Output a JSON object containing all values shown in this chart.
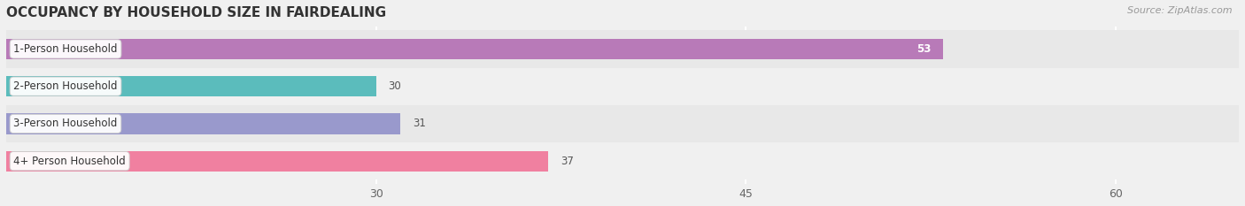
{
  "title": "OCCUPANCY BY HOUSEHOLD SIZE IN FAIRDEALING",
  "source": "Source: ZipAtlas.com",
  "categories": [
    "1-Person Household",
    "2-Person Household",
    "3-Person Household",
    "4+ Person Household"
  ],
  "values": [
    53,
    30,
    31,
    37
  ],
  "bar_colors": [
    "#b87ab8",
    "#5bbcbc",
    "#9999cc",
    "#f080a0"
  ],
  "xlim": [
    15,
    65
  ],
  "xticks": [
    30,
    45,
    60
  ],
  "background_color": "#f0f0f0",
  "row_colors": [
    "#e8e8e8",
    "#f0f0f0"
  ],
  "bar_height": 0.55,
  "title_fontsize": 11,
  "label_fontsize": 8.5,
  "value_fontsize": 8.5
}
